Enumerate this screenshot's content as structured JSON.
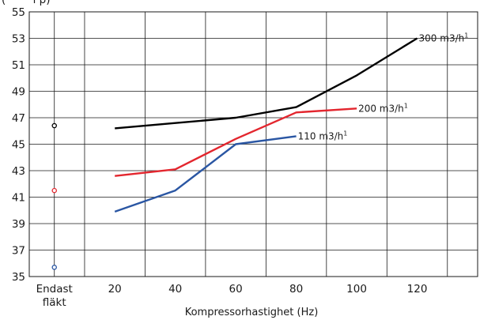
{
  "chart_data": {
    "type": "line",
    "title": "",
    "ylabel_fragment": "(",
    "ylabel_fragment_end": "l  p)",
    "xlabel": "Kompressorhastighet (Hz)",
    "x_tick_labels": [
      "Endast fläkt",
      "20",
      "40",
      "60",
      "80",
      "100",
      "120"
    ],
    "x_ticks": [
      0,
      20,
      40,
      60,
      80,
      100,
      120
    ],
    "x_range": [
      -8.3,
      140
    ],
    "ylim": [
      35,
      55
    ],
    "y_ticks": [
      35,
      37,
      39,
      41,
      43,
      45,
      47,
      49,
      51,
      53,
      55
    ],
    "grid": true,
    "series": [
      {
        "name": "300 m3/h",
        "color": "#000000",
        "x": [
          20,
          40,
          60,
          80,
          100,
          120
        ],
        "values": [
          46.2,
          46.6,
          47.0,
          47.8,
          50.2,
          53.0
        ],
        "fan_only_value": 46.4
      },
      {
        "name": "200 m3/h",
        "color": "#e3262e",
        "x": [
          20,
          40,
          60,
          80,
          100
        ],
        "values": [
          42.6,
          43.1,
          45.4,
          47.4,
          47.7
        ],
        "fan_only_value": 41.5
      },
      {
        "name": "110 m3/h",
        "color": "#2a56a3",
        "x": [
          20,
          40,
          60,
          80
        ],
        "values": [
          39.9,
          41.5,
          45.0,
          45.6
        ],
        "fan_only_value": 35.7
      }
    ],
    "series_label_superscript": "1"
  }
}
